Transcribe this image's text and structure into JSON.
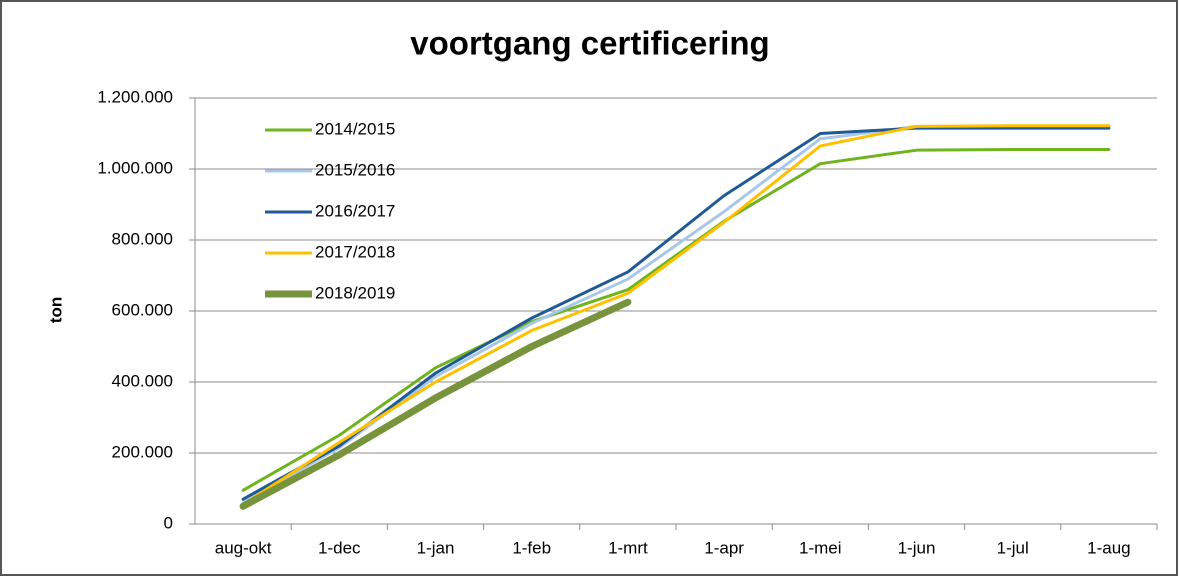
{
  "chart_data": {
    "type": "line",
    "title": "voortgang certificering",
    "y_label": "ton",
    "categories": [
      "aug-okt",
      "1-dec",
      "1-jan",
      "1-feb",
      "1-mrt",
      "1-apr",
      "1-mei",
      "1-jun",
      "1-jul",
      "1-aug"
    ],
    "series": [
      {
        "name": "2014/2015",
        "color": "#6fb31e",
        "width": 3,
        "values": [
          95000,
          250000,
          440000,
          570000,
          660000,
          853000,
          1015000,
          1053000,
          1055000,
          1055000
        ]
      },
      {
        "name": "2015/2016",
        "color": "#a9c7e8",
        "width": 3,
        "values": [
          60000,
          215000,
          415000,
          565000,
          690000,
          880000,
          1085000,
          1120000,
          1120000,
          1120000
        ]
      },
      {
        "name": "2016/2017",
        "color": "#1f5a96",
        "width": 3,
        "values": [
          70000,
          220000,
          425000,
          580000,
          710000,
          925000,
          1100000,
          1115000,
          1115000,
          1115000
        ]
      },
      {
        "name": "2017/2018",
        "color": "#ffc000",
        "width": 3,
        "values": [
          55000,
          230000,
          400000,
          545000,
          650000,
          850000,
          1065000,
          1120000,
          1122000,
          1122000
        ]
      },
      {
        "name": "2018/2019",
        "color": "#77933c",
        "width": 7,
        "values": [
          50000,
          195000,
          355000,
          500000,
          625000,
          null,
          null,
          null,
          null,
          null
        ]
      }
    ],
    "ylim": [
      0,
      1200000
    ],
    "yticks": [
      0,
      {
        "value": 200000,
        "label": "200.000"
      },
      {
        "value": 400000,
        "label": "400.000"
      },
      {
        "value": 600000,
        "label": "600.000"
      },
      {
        "value": 800000,
        "label": "800.000"
      },
      {
        "value": 1000000,
        "label": "1.000.000"
      },
      {
        "value": 1200000,
        "label": "1.200.000"
      }
    ],
    "grid": true,
    "legend": "upper left"
  }
}
